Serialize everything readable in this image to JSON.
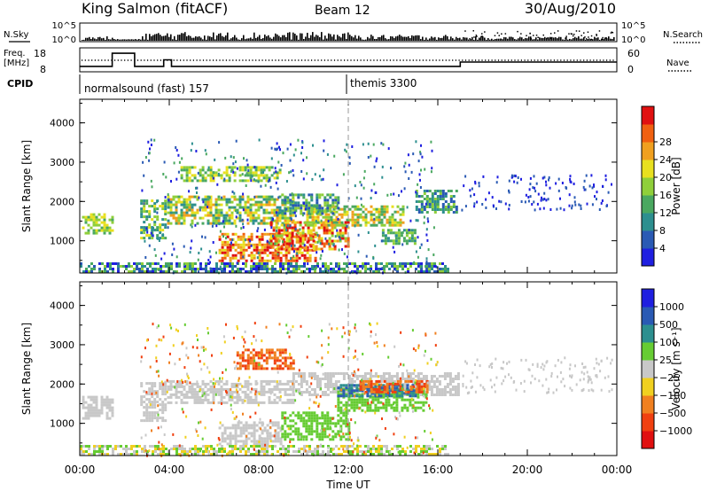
{
  "header": {
    "station": "King Salmon (fitACF)",
    "beam": "Beam 12",
    "date": "30/Aug/2010"
  },
  "top_panels": {
    "nsky_label": "N.Sky",
    "nsky_ticks": [
      "10^5",
      "10^0"
    ],
    "nsearch_label": "N.Search",
    "freq_label_line1": "Freq.",
    "freq_label_line2": "[MHz]",
    "freq_ticks": [
      "18",
      "8"
    ],
    "nave_ticks": [
      "60",
      "0"
    ],
    "nave_label": "Nave",
    "cpid_label": "CPID",
    "cpid_segments": [
      {
        "label": "normalsound (fast) 157",
        "start_hour": 0
      },
      {
        "label": "themis 3300",
        "start_hour": 12
      }
    ],
    "freq_steps": [
      {
        "h": 0,
        "v": 10.5
      },
      {
        "h": 1.45,
        "v": 16.5
      },
      {
        "h": 2.45,
        "v": 10.5
      },
      {
        "h": 3.75,
        "v": 13.5
      },
      {
        "h": 4.1,
        "v": 10.5
      },
      {
        "h": 17,
        "v": 12.5
      },
      {
        "h": 24,
        "v": 12.5
      }
    ]
  },
  "chart_data": [
    {
      "type": "heatmap",
      "name": "power-panel",
      "ylabel": "Slant Range [km]",
      "xlabel": "",
      "xlim": [
        0,
        24
      ],
      "ylim": [
        180,
        4600
      ],
      "yticks": [
        1000,
        2000,
        3000,
        4000
      ],
      "colorbar": {
        "label": "Power [dB]",
        "ticks": [
          "4",
          "8",
          "12",
          "16",
          "20",
          "24",
          "28"
        ],
        "colors": [
          "#1f1fe0",
          "#2a5ab4",
          "#2d8f8f",
          "#4aa860",
          "#8fcf3a",
          "#e8e020",
          "#f0a020",
          "#f06010",
          "#e01010"
        ]
      },
      "regions": [
        {
          "h0": 0.1,
          "h1": 1.5,
          "r0": 1200,
          "r1": 1700,
          "c": [
            3,
            5
          ]
        },
        {
          "h0": 2.7,
          "h1": 3.8,
          "r0": 1050,
          "r1": 2050,
          "c": [
            2,
            5
          ]
        },
        {
          "h0": 3.9,
          "h1": 9.5,
          "r0": 1450,
          "r1": 2150,
          "c": [
            2,
            6
          ]
        },
        {
          "h0": 4.5,
          "h1": 9.0,
          "r0": 2500,
          "r1": 2900,
          "c": [
            3,
            5
          ]
        },
        {
          "h0": 6.2,
          "h1": 10.5,
          "r0": 500,
          "r1": 1200,
          "c": [
            5,
            8
          ]
        },
        {
          "h0": 8.5,
          "h1": 12.0,
          "r0": 800,
          "r1": 1500,
          "c": [
            4,
            8
          ]
        },
        {
          "h0": 10.0,
          "h1": 14.5,
          "r0": 1400,
          "r1": 1900,
          "c": [
            3,
            6
          ]
        },
        {
          "h0": 9.0,
          "h1": 11.5,
          "r0": 1700,
          "r1": 2200,
          "c": [
            1,
            4
          ]
        },
        {
          "h0": 13.5,
          "h1": 15.0,
          "r0": 900,
          "r1": 1300,
          "c": [
            2,
            4
          ]
        },
        {
          "h0": 15.0,
          "h1": 16.9,
          "r0": 1700,
          "r1": 2300,
          "c": [
            1,
            4
          ]
        },
        {
          "h0": 0.0,
          "h1": 16.5,
          "r0": 200,
          "r1": 450,
          "c": [
            0,
            4
          ]
        }
      ],
      "scatter": [
        {
          "h0": 2.7,
          "h1": 16.0,
          "r0": 200,
          "r1": 3600,
          "n": 420,
          "c": [
            0,
            3
          ]
        },
        {
          "h0": 17.0,
          "h1": 23.8,
          "r0": 1800,
          "r1": 2700,
          "n": 130,
          "c": [
            0,
            1
          ]
        }
      ]
    },
    {
      "type": "heatmap",
      "name": "velocity-panel",
      "ylabel": "Slant Range [km]",
      "xlabel": "Time UT",
      "xlim": [
        0,
        24
      ],
      "ylim": [
        180,
        4600
      ],
      "yticks": [
        1000,
        2000,
        3000,
        4000
      ],
      "xticks": [
        "00:00",
        "04:00",
        "08:00",
        "12:00",
        "16:00",
        "20:00",
        "00:00"
      ],
      "colorbar": {
        "label": "Velocity [m s⁻¹]",
        "ticks": [
          "1000",
          "500",
          "100",
          "25",
          "−25",
          "−100",
          "−500",
          "−1000"
        ],
        "colors": [
          "#1f1fe0",
          "#2a5ab4",
          "#2d8f8f",
          "#66cc33",
          "#c8c8c8",
          "#f0d020",
          "#f08020",
          "#f04010",
          "#e01010"
        ]
      },
      "regions": [
        {
          "h0": 0.1,
          "h1": 1.5,
          "r0": 1150,
          "r1": 1700,
          "c": [
            4,
            4
          ]
        },
        {
          "h0": 2.7,
          "h1": 3.8,
          "r0": 1050,
          "r1": 2050,
          "c": [
            4,
            4
          ]
        },
        {
          "h0": 3.9,
          "h1": 9.5,
          "r0": 1500,
          "r1": 2100,
          "c": [
            4,
            4
          ]
        },
        {
          "h0": 9.5,
          "h1": 16.9,
          "r0": 1700,
          "r1": 2300,
          "c": [
            4,
            4
          ]
        },
        {
          "h0": 6.2,
          "h1": 9.0,
          "r0": 500,
          "r1": 1050,
          "c": [
            4,
            4
          ]
        },
        {
          "h0": 9.0,
          "h1": 12.0,
          "r0": 600,
          "r1": 1300,
          "c": [
            3,
            3
          ]
        },
        {
          "h0": 11.5,
          "h1": 15.5,
          "r0": 1300,
          "r1": 1900,
          "c": [
            3,
            3
          ]
        },
        {
          "h0": 11.5,
          "h1": 15.0,
          "r0": 1700,
          "r1": 2000,
          "c": [
            1,
            2
          ]
        },
        {
          "h0": 7.0,
          "h1": 9.5,
          "r0": 2400,
          "r1": 2900,
          "c": [
            6,
            7
          ]
        },
        {
          "h0": 12.5,
          "h1": 15.5,
          "r0": 1800,
          "r1": 2100,
          "c": [
            6,
            7
          ]
        },
        {
          "h0": 0.0,
          "h1": 16.5,
          "r0": 200,
          "r1": 450,
          "c": [
            3,
            5
          ]
        }
      ],
      "scatter": [
        {
          "h0": 2.7,
          "h1": 16.0,
          "r0": 200,
          "r1": 3600,
          "n": 420,
          "c": [
            3,
            7
          ]
        },
        {
          "h0": 17.0,
          "h1": 23.8,
          "r0": 1800,
          "r1": 2700,
          "n": 130,
          "c": [
            4,
            4
          ]
        }
      ]
    }
  ]
}
